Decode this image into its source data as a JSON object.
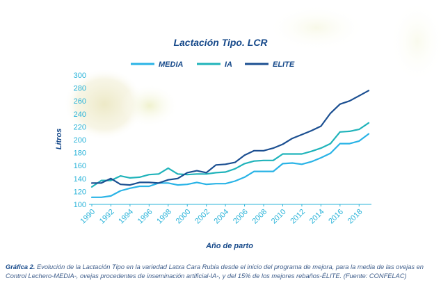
{
  "chart_data": {
    "type": "line",
    "title": "Lactación Tipo. LCR",
    "xlabel": "Año de parto",
    "ylabel": "Litros",
    "ylim": [
      100,
      300
    ],
    "yticks": [
      100,
      120,
      140,
      160,
      180,
      200,
      220,
      240,
      260,
      280,
      300
    ],
    "xlim": [
      1990,
      2019
    ],
    "xticks": [
      "1990",
      "1992",
      "1994",
      "1996",
      "1998",
      "2000",
      "2002",
      "2004",
      "2006",
      "2008",
      "2010",
      "2012",
      "2014",
      "2016",
      "2018"
    ],
    "x": [
      1990,
      1991,
      1992,
      1993,
      1994,
      1995,
      1996,
      1997,
      1998,
      1999,
      2000,
      2001,
      2002,
      2003,
      2004,
      2005,
      2006,
      2007,
      2008,
      2009,
      2010,
      2011,
      2012,
      2013,
      2014,
      2015,
      2016,
      2017,
      2018,
      2019
    ],
    "legend_position": "top",
    "grid": false,
    "series": [
      {
        "name": "MEDIA",
        "color": "#29b3e6",
        "values": [
          111,
          111,
          113,
          121,
          125,
          128,
          128,
          133,
          133,
          130,
          131,
          134,
          131,
          132,
          132,
          136,
          142,
          151,
          151,
          151,
          163,
          164,
          162,
          166,
          172,
          179,
          194,
          194,
          198,
          209
        ]
      },
      {
        "name": "IA",
        "color": "#1fb3ba",
        "values": [
          127,
          137,
          137,
          144,
          141,
          142,
          146,
          147,
          156,
          147,
          146,
          147,
          147,
          149,
          150,
          155,
          163,
          167,
          168,
          168,
          178,
          178,
          178,
          182,
          187,
          194,
          212,
          213,
          216,
          226
        ]
      },
      {
        "name": "ELITE",
        "color": "#1b4f91",
        "values": [
          133,
          133,
          140,
          131,
          130,
          134,
          134,
          133,
          138,
          140,
          149,
          152,
          149,
          161,
          162,
          165,
          176,
          183,
          183,
          187,
          193,
          202,
          208,
          214,
          221,
          241,
          255,
          260,
          268,
          276
        ]
      }
    ]
  },
  "caption": {
    "label": "Gráfica 2.",
    "text": " Evolución de la Lactación Tipo en la variedad Latxa Cara Rubia desde el inicio del programa de mejora, para la media de las ovejas en Control Lechero-MEDIA-, ovejas procedentes de inseminación artificial-IA-, y del 15% de los mejores rebaños-ÉLITE. (Fuente: CONFELAC)"
  }
}
